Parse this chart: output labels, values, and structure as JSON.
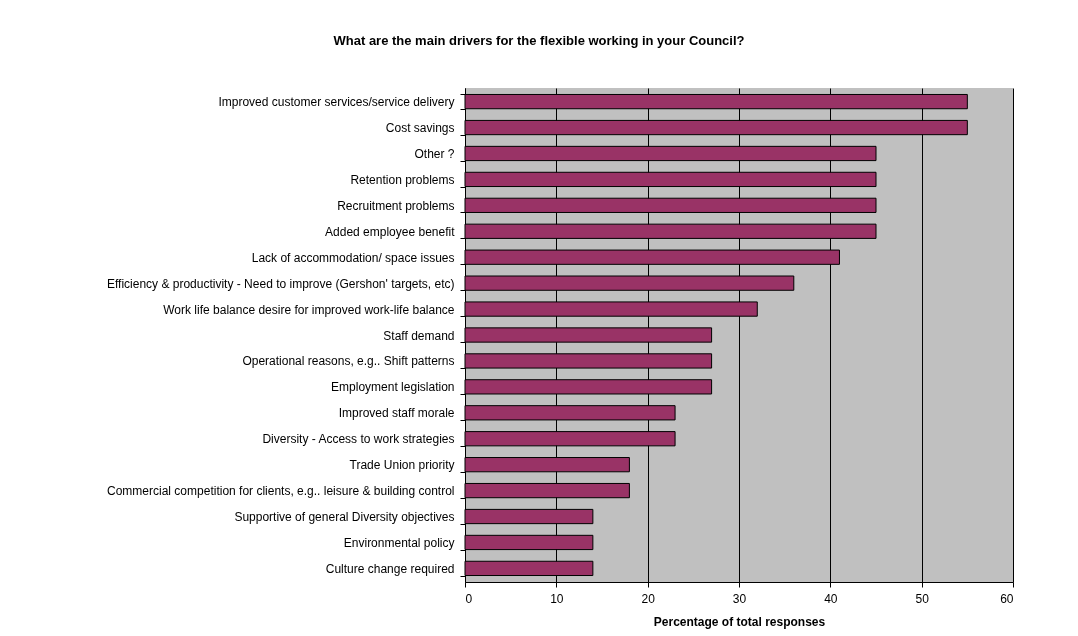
{
  "chart_data": {
    "type": "bar",
    "orientation": "horizontal",
    "title": "What are the main drivers for the flexible working in your Council?",
    "xlabel": "Percentage of total responses",
    "categories": [
      "Improved customer services/service delivery",
      "Cost savings",
      "Other ? ",
      "Retention problems",
      "Recruitment problems",
      "Added employee benefit",
      "Lack of accommodation/ space issues",
      "Efficiency & productivity - Need to improve (Gershon' targets, etc)",
      "Work life balance desire for improved work-life balance",
      "Staff demand",
      "Operational reasons, e.g.. Shift patterns",
      "Employment legislation",
      "Improved staff morale",
      "Diversity - Access to work strategies",
      "Trade Union priority",
      "Commercial competition for clients, e.g.. leisure & building control",
      "Supportive of general Diversity objectives",
      "Environmental policy",
      "Culture change required"
    ],
    "values": [
      55,
      55,
      45,
      45,
      45,
      45,
      41,
      36,
      32,
      27,
      27,
      27,
      23,
      23,
      18,
      18,
      14,
      14,
      14
    ],
    "color": "#993366",
    "xlim": [
      0,
      60
    ],
    "xticks": [
      0,
      10,
      20,
      30,
      40,
      50,
      60
    ],
    "grid": "x"
  }
}
